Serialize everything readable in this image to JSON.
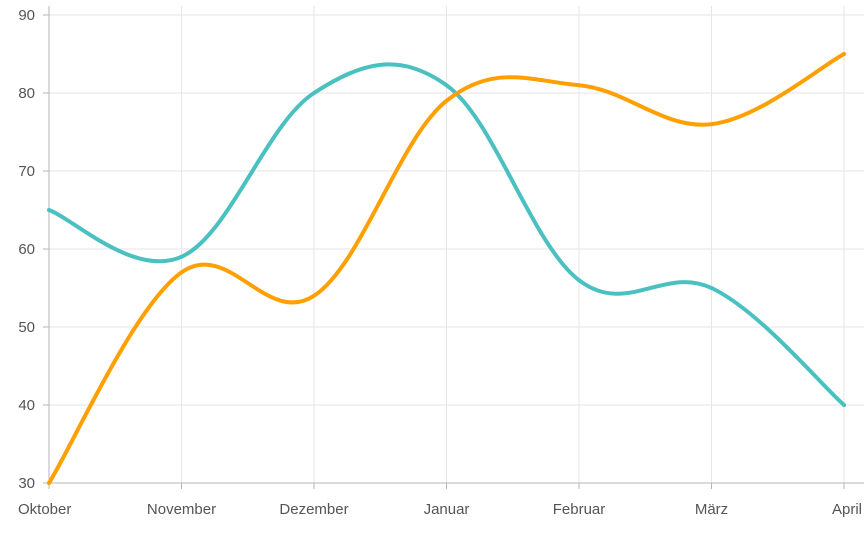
{
  "chart_data": {
    "type": "line",
    "title": "",
    "xlabel": "",
    "ylabel": "",
    "categories": [
      "Oktober",
      "November",
      "Dezember",
      "Januar",
      "Februar",
      "März",
      "April"
    ],
    "ylim": [
      30,
      90
    ],
    "yticks": [
      30,
      40,
      50,
      60,
      70,
      80,
      90
    ],
    "grid": true,
    "legend": "none",
    "series": [
      {
        "color": "#4bc0c0",
        "values": [
          65,
          59,
          80,
          81,
          56,
          55,
          40
        ]
      },
      {
        "color": "#ff9f00",
        "values": [
          30,
          57,
          54,
          79,
          81,
          76,
          85
        ]
      }
    ]
  }
}
